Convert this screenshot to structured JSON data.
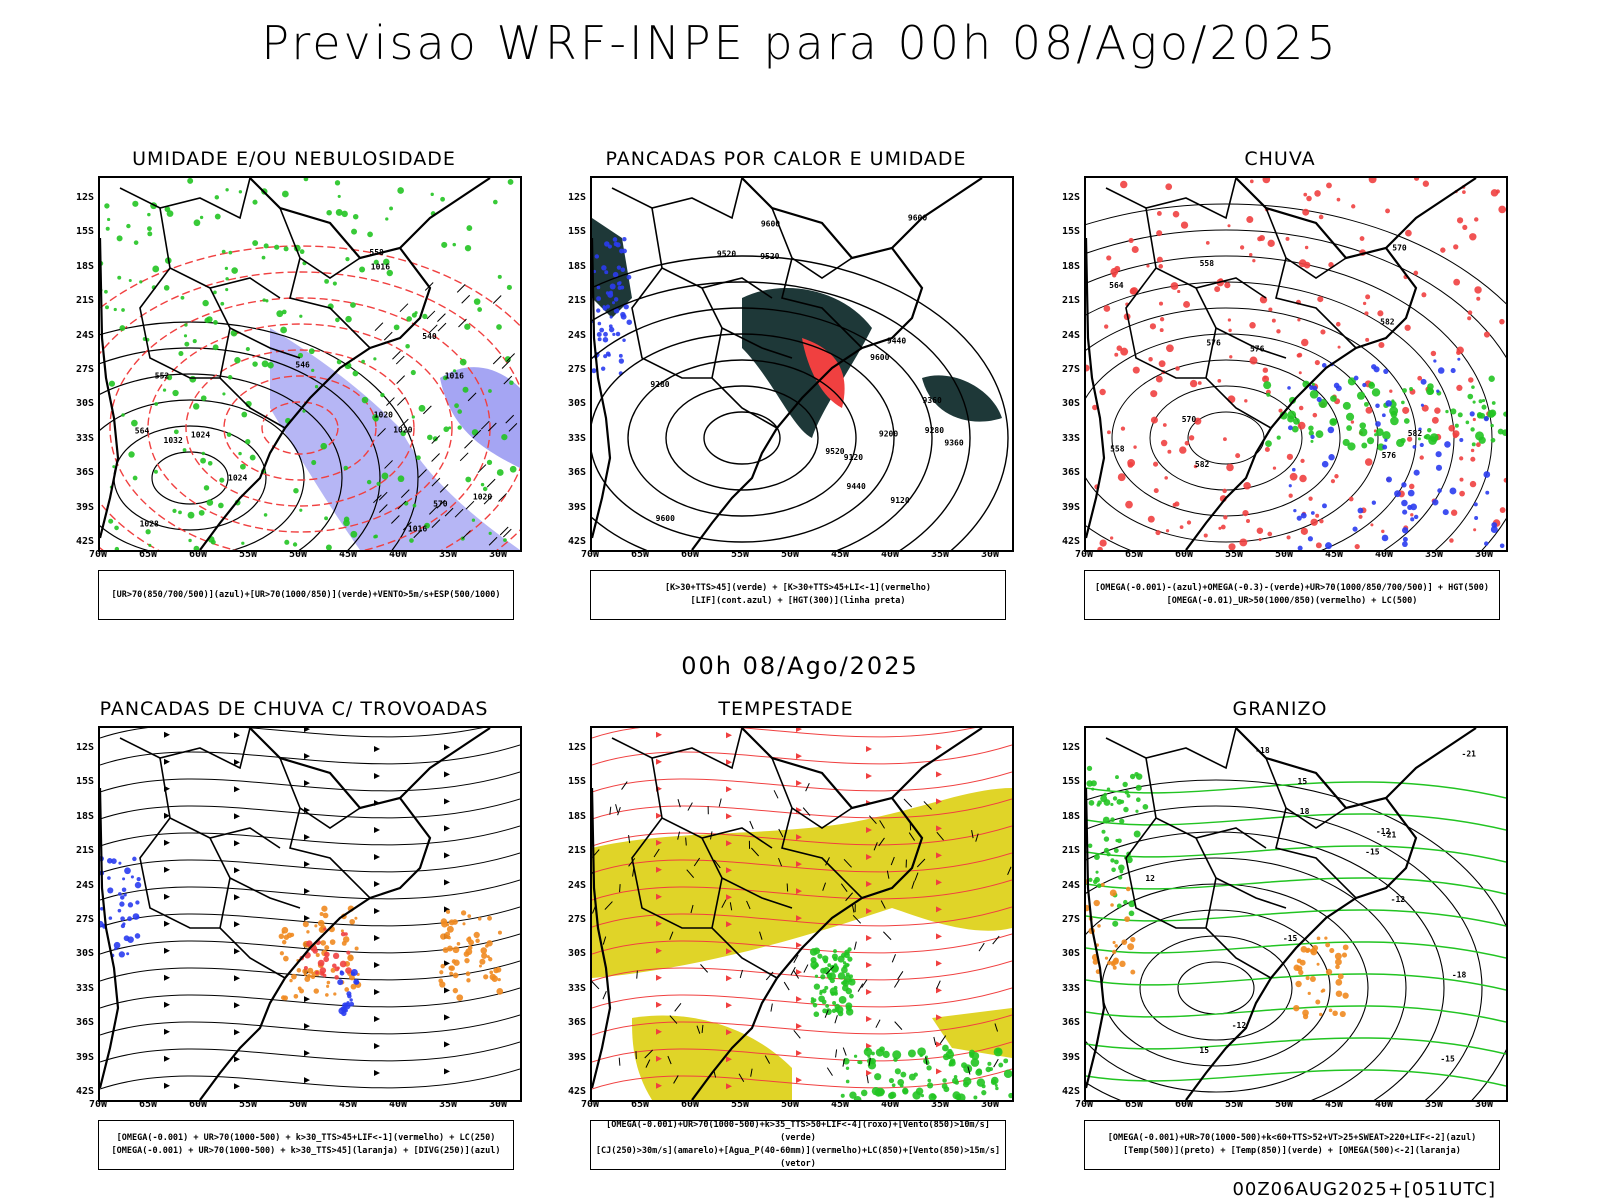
{
  "header": {
    "title": "Previsao WRF-INPE  para 00h 08/Ago/2025",
    "mid_title": "00h 08/Ago/2025",
    "stamp": "00Z06AUG2025+[051UTC]"
  },
  "axes": {
    "lat_labels": [
      "12S",
      "15S",
      "18S",
      "21S",
      "24S",
      "27S",
      "30S",
      "33S",
      "36S",
      "39S",
      "42S"
    ],
    "lon_labels": [
      "70W",
      "65W",
      "60W",
      "55W",
      "50W",
      "45W",
      "40W",
      "35W",
      "30W"
    ]
  },
  "colors": {
    "green": "#22c422",
    "red": "#f04040",
    "blue": "#2a3cf0",
    "lavender": "#8f8ff0",
    "darkteal": "#1e3838",
    "yellow": "#e0d428",
    "orange": "#f08a20"
  },
  "panels": [
    {
      "title": "UMIDADE E/OU NEBULOSIDADE",
      "legend": [
        "[UR>70(850/700/500)](azul)+[UR>70(1000/850)](verde)+VENTO>5m/s+ESP(500/1000)"
      ],
      "labels": [
        "1016",
        "1016",
        "1020",
        "1024",
        "1028",
        "1032",
        "1020",
        "1024",
        "1016",
        "1020",
        "570",
        "564",
        "558",
        "552",
        "546",
        "540"
      ]
    },
    {
      "title": "PANCADAS POR CALOR E UMIDADE",
      "legend": [
        "[K>30+TTS>45](verde) + [K>30+TTS>45+LI<-1](vermelho)",
        "[LIF](cont.azul) + [HGT(300)](linha preta)"
      ],
      "labels": [
        "9600",
        "9600",
        "9600",
        "9600",
        "9520",
        "9520",
        "9520",
        "9440",
        "9440",
        "9360",
        "9360",
        "9280",
        "9280",
        "9200",
        "9120",
        "9120"
      ]
    },
    {
      "title": "CHUVA",
      "legend": [
        "[OMEGA(-0.001)-(azul)+OMEGA(-0.3)-(verde)+UR>70(1000/850/700/500)] + HGT(500)",
        "[OMEGA(-0.01)_UR>50(1000/850)(vermelho) + LC(500)"
      ],
      "labels": [
        "582",
        "582",
        "582",
        "576",
        "576",
        "576",
        "570",
        "570",
        "564",
        "558",
        "558"
      ]
    },
    {
      "title": "PANCADAS DE CHUVA C/ TROVOADAS",
      "legend": [
        "[OMEGA(-0.001) + UR>70(1000-500) + k>30_TTS>45+LIF<-1](vermelho) + LC(250)",
        "[OMEGA(-0.001) + UR>70(1000-500) + k>30_TTS>45](laranja) + [DIVG(250)](azul)"
      ],
      "labels": []
    },
    {
      "title": "TEMPESTADE",
      "legend": [
        "[OMEGA(-0.001)+UR>70(1000-500)+k>35_TTS>50+LIF<-4](roxo)+[Vento(850)>10m/s](verde)",
        "[CJ(250)>30m/s](amarelo)+[Agua_P(40-60mm)](vermelho)+LC(850)+[Vento(850)>15m/s](vetor)"
      ],
      "labels": []
    },
    {
      "title": "GRANIZO",
      "legend": [
        "[OMEGA(-0.001)+UR>70(1000-500)+k<60+TTS>52+VT>25+SWEAT>220+LIF<-2](azul)",
        "[Temp(500)](preto) + [Temp(850)](verde) + [OMEGA(500)<-2](laranja)"
      ],
      "labels": [
        "-12",
        "-12",
        "-12",
        "-15",
        "-15",
        "-15",
        "-18",
        "-18",
        "-21",
        "-21",
        "15",
        "15",
        "12",
        "18"
      ]
    }
  ]
}
